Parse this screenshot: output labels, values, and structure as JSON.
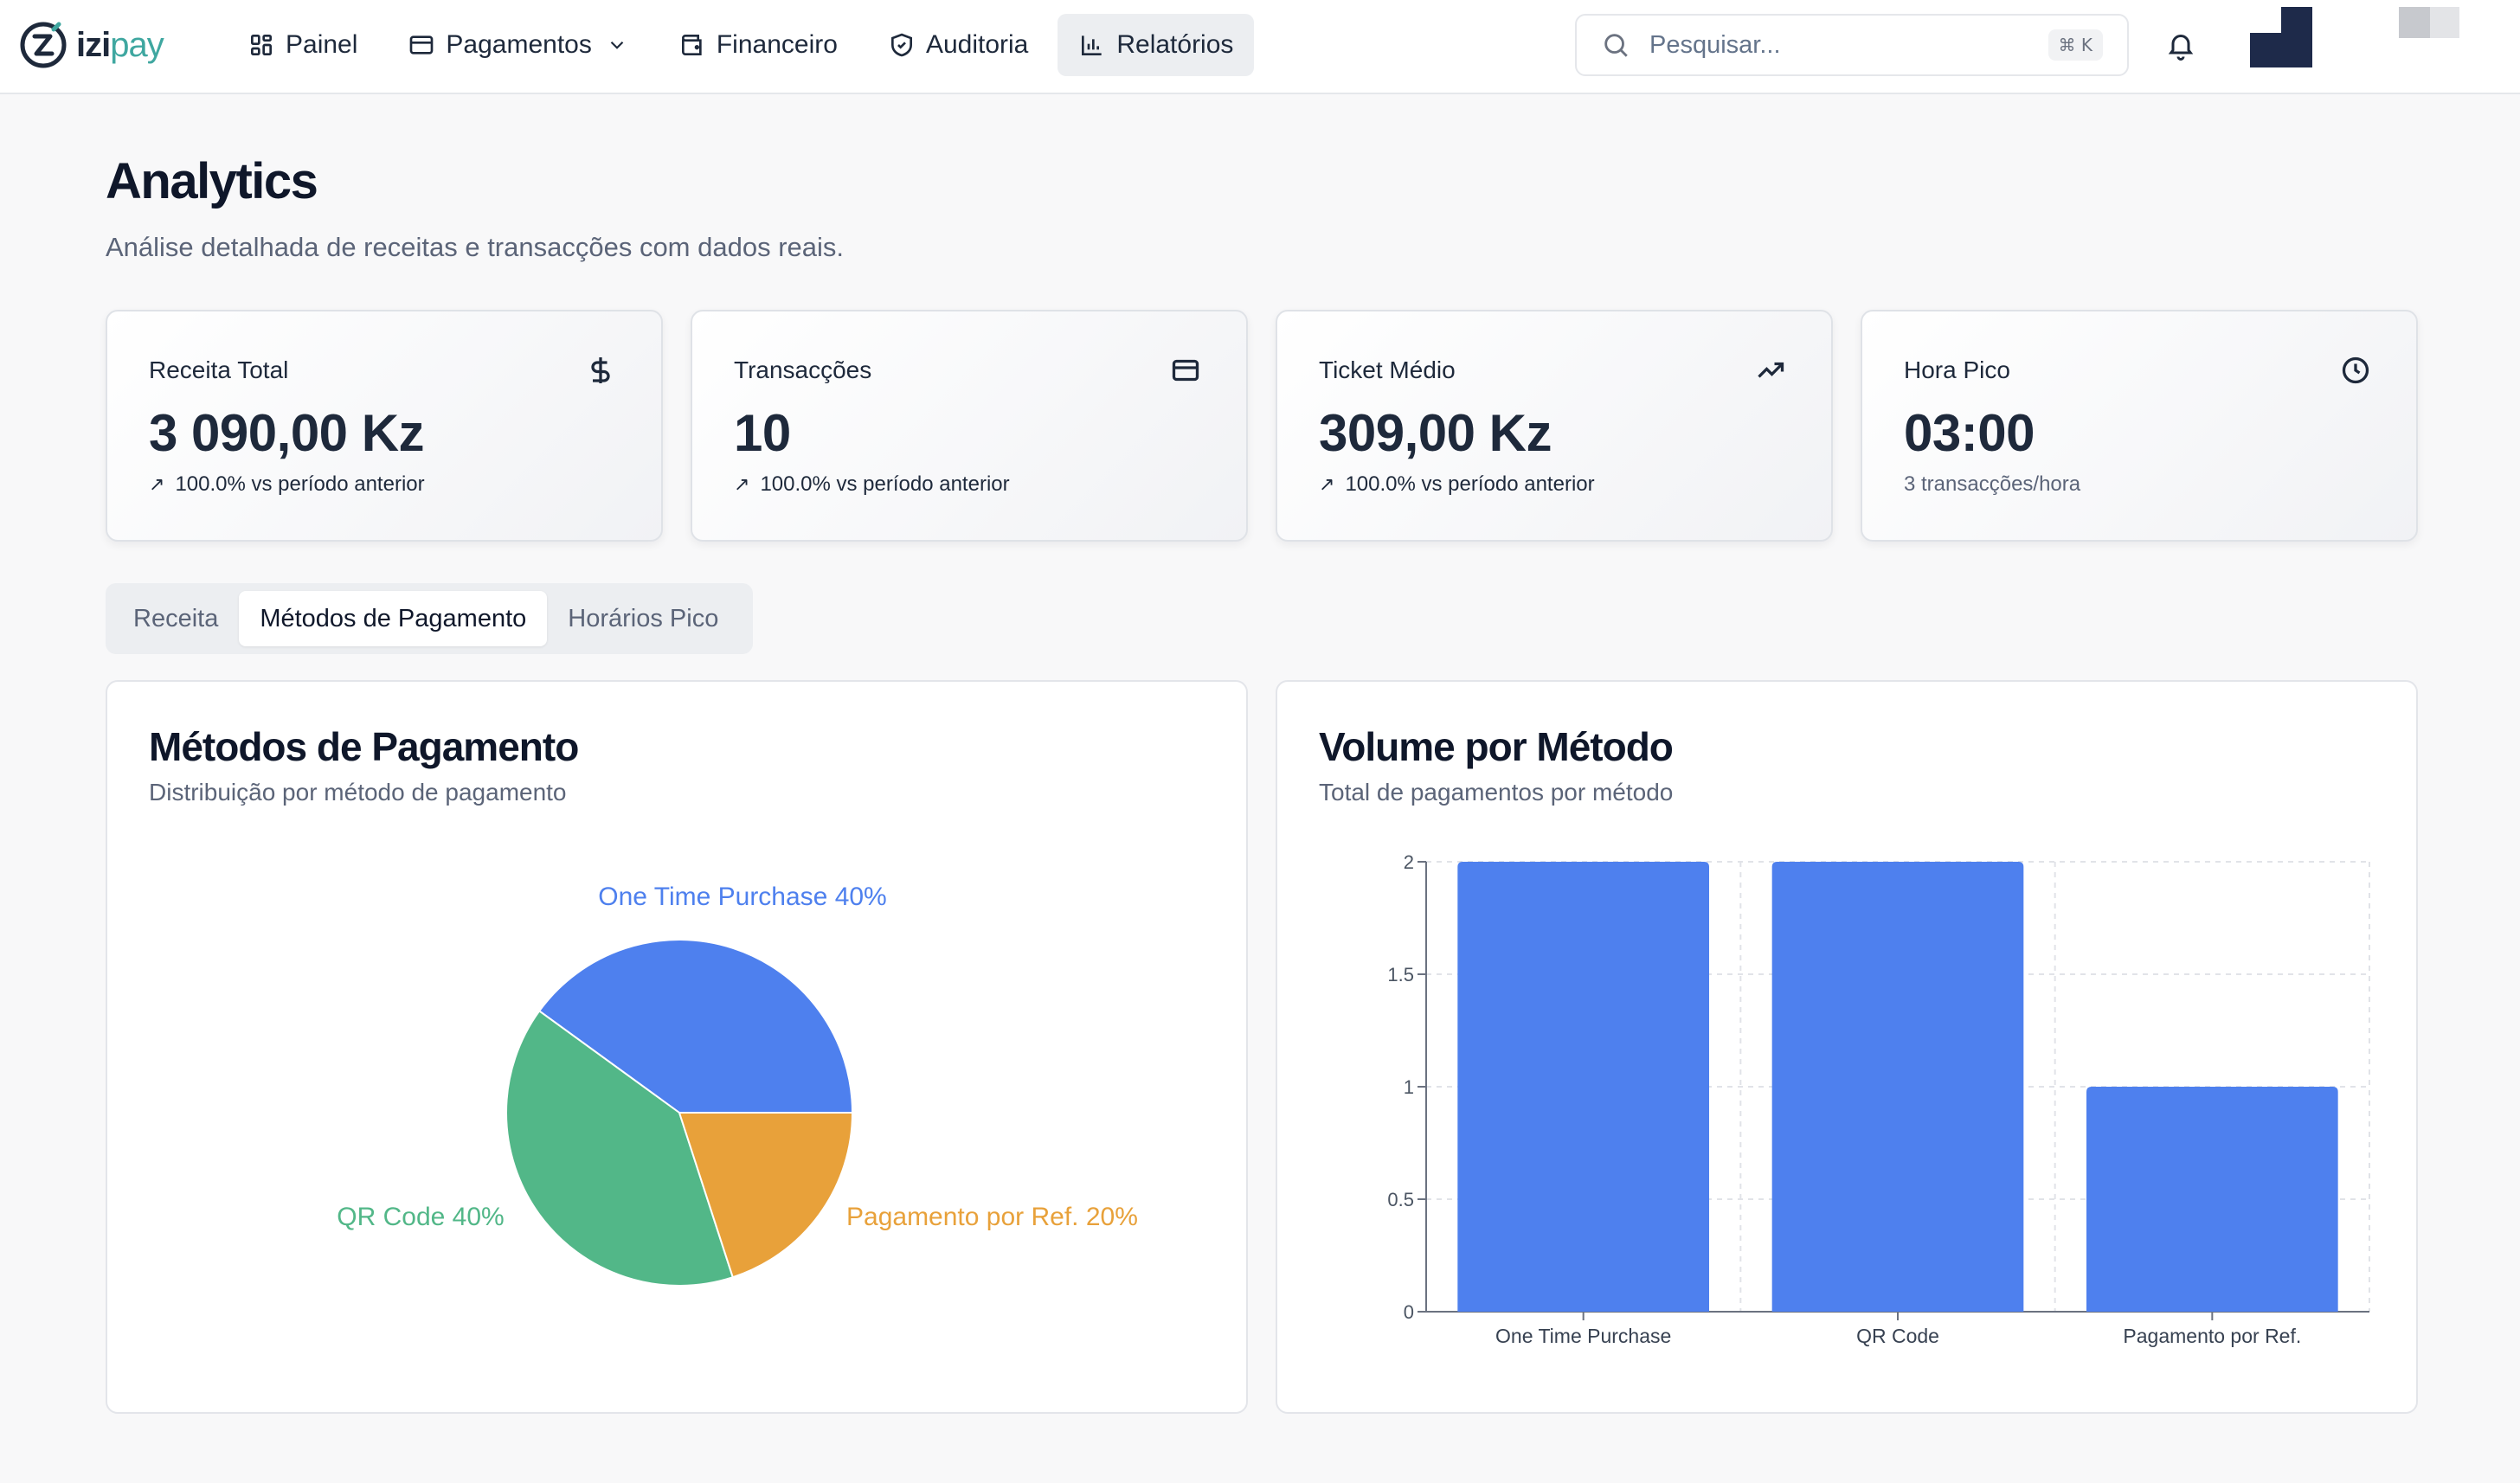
{
  "brand": {
    "name_part1": "izi",
    "name_part2": "pay"
  },
  "nav": {
    "items": [
      {
        "label": "Painel",
        "icon": "dashboard-icon"
      },
      {
        "label": "Pagamentos",
        "icon": "credit-card-icon"
      },
      {
        "label": "Financeiro",
        "icon": "wallet-icon"
      },
      {
        "label": "Auditoria",
        "icon": "shield-icon"
      },
      {
        "label": "Relatórios",
        "icon": "bar-chart-icon"
      }
    ],
    "active": "Relatórios"
  },
  "search": {
    "placeholder": "Pesquisar...",
    "shortcut": "⌘ K"
  },
  "page": {
    "title": "Analytics",
    "subtitle": "Análise detalhada de receitas e transacções com dados reais."
  },
  "stats": [
    {
      "label": "Receita Total",
      "value": "3 090,00 Kz",
      "change": "100.0% vs período anterior",
      "icon": "dollar-icon"
    },
    {
      "label": "Transacções",
      "value": "10",
      "change": "100.0% vs período anterior",
      "icon": "credit-card-icon"
    },
    {
      "label": "Ticket Médio",
      "value": "309,00 Kz",
      "change": "100.0% vs período anterior",
      "icon": "trending-up-icon"
    },
    {
      "label": "Hora Pico",
      "value": "03:00",
      "change": "3 transacções/hora",
      "icon": "clock-icon"
    }
  ],
  "tabs": {
    "items": [
      "Receita",
      "Métodos de Pagamento",
      "Horários Pico"
    ],
    "active": "Métodos de Pagamento"
  },
  "pie_panel": {
    "title": "Métodos de Pagamento",
    "subtitle": "Distribuição por método de pagamento"
  },
  "bar_panel": {
    "title": "Volume por Método",
    "subtitle": "Total de pagamentos por método"
  },
  "colors": {
    "blue": "#4e80ee",
    "green": "#52b788",
    "orange": "#e8a13a"
  },
  "chart_data": [
    {
      "type": "pie",
      "title": "Métodos de Pagamento",
      "slices": [
        {
          "label": "One Time Purchase",
          "value": 40,
          "display": "One Time Purchase 40%",
          "color": "#4e80ee"
        },
        {
          "label": "QR Code",
          "value": 40,
          "display": "QR Code 40%",
          "color": "#52b788"
        },
        {
          "label": "Pagamento por Ref.",
          "value": 20,
          "display": "Pagamento por Ref. 20%",
          "color": "#e8a13a"
        }
      ]
    },
    {
      "type": "bar",
      "title": "Volume por Método",
      "categories": [
        "One Time Purchase",
        "QR Code",
        "Pagamento por Ref."
      ],
      "values": [
        2,
        2,
        1
      ],
      "ylim": [
        0,
        2
      ],
      "yticks": [
        "0",
        "0.5",
        "1",
        "1.5",
        "2"
      ],
      "grid": true,
      "color": "#4e80ee"
    }
  ]
}
